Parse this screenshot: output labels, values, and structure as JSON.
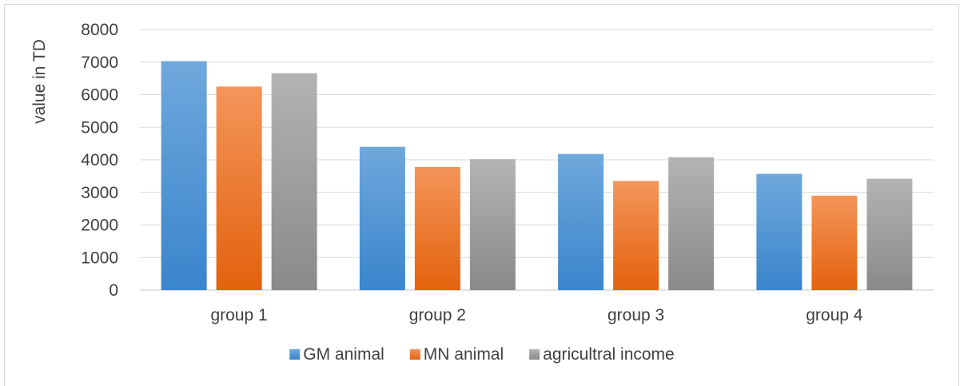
{
  "chart_data": {
    "type": "bar",
    "title": "",
    "xlabel": "",
    "ylabel": "value in TD",
    "ylim": [
      0,
      8000
    ],
    "yticks": [
      0,
      1000,
      2000,
      3000,
      4000,
      5000,
      6000,
      7000,
      8000
    ],
    "grid": true,
    "legend_position": "bottom",
    "categories": [
      "group 1",
      "group 2",
      "group 3",
      "group 4"
    ],
    "series": [
      {
        "name": "GM animal",
        "values": [
          7030,
          4400,
          4180,
          3570
        ],
        "color_top": "#6fa8dc",
        "color_bottom": "#3a85cc"
      },
      {
        "name": "MN animal",
        "values": [
          6250,
          3780,
          3350,
          2900
        ],
        "color_top": "#f4955a",
        "color_bottom": "#e3620d"
      },
      {
        "name": "agricultral income",
        "values": [
          6660,
          4020,
          4080,
          3420
        ],
        "color_top": "#b3b3b3",
        "color_bottom": "#8a8a8a"
      }
    ]
  }
}
